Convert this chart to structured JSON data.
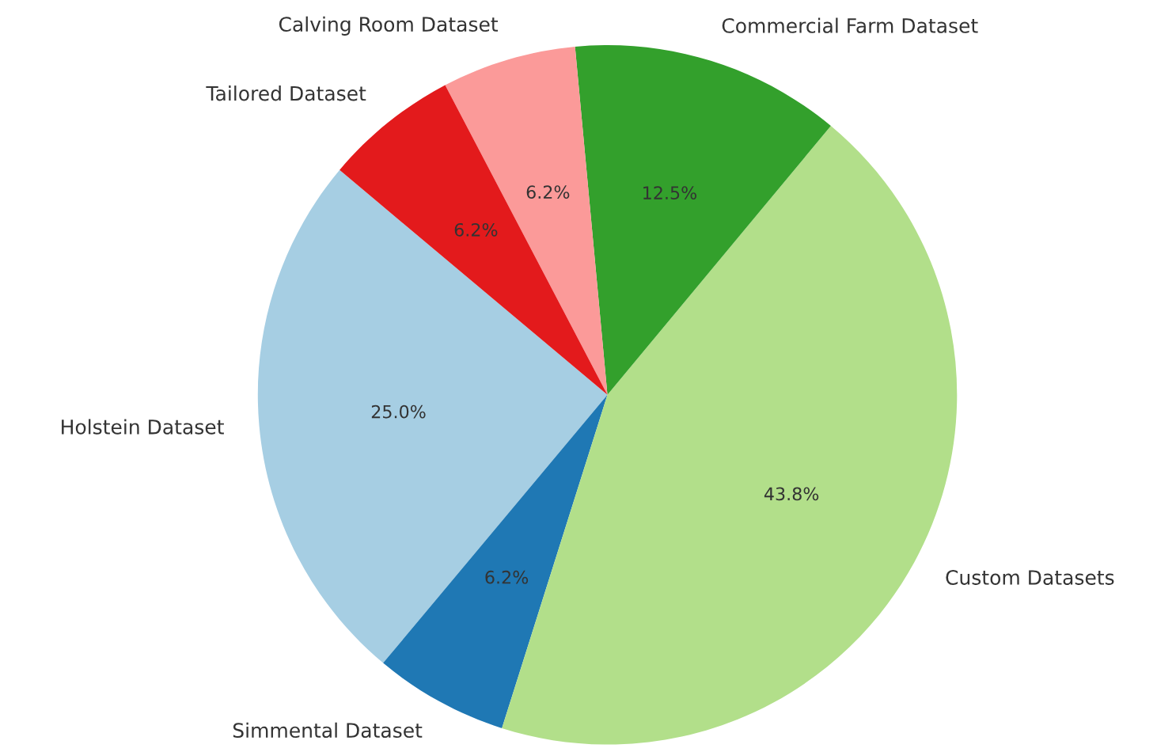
{
  "chart_data": {
    "type": "pie",
    "categories": [
      "Holstein Dataset",
      "Simmental Dataset",
      "Custom Datasets",
      "Commercial Farm Dataset",
      "Calving Room Dataset",
      "Tailored Dataset"
    ],
    "values": [
      25.0,
      6.2,
      43.8,
      12.5,
      6.2,
      6.2
    ],
    "value_labels": [
      "25.0%",
      "6.2%",
      "43.8%",
      "12.5%",
      "6.2%",
      "6.2%"
    ],
    "colors": [
      "#a6cee3",
      "#1f78b4",
      "#b2df8a",
      "#33a02c",
      "#fb9a99",
      "#e31a1c"
    ]
  }
}
